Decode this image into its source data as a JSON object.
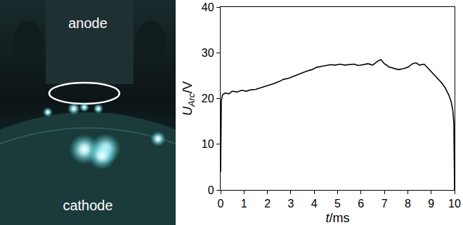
{
  "image": {
    "top_label": "anode",
    "bottom_label": "cathode"
  },
  "chart_data": {
    "type": "line",
    "xlabel": {
      "symbol": "t",
      "unit": "/ms"
    },
    "ylabel": {
      "symbol": "U",
      "subscript": "Arc",
      "unit": "/V"
    },
    "x": [
      0,
      0.03,
      0.08,
      0.2,
      0.35,
      0.5,
      0.7,
      0.9,
      1.1,
      1.3,
      1.5,
      1.7,
      1.9,
      2.1,
      2.3,
      2.5,
      2.7,
      2.9,
      3.1,
      3.3,
      3.5,
      3.7,
      3.9,
      4.1,
      4.3,
      4.5,
      4.7,
      4.9,
      5.1,
      5.3,
      5.5,
      5.7,
      5.9,
      6.1,
      6.3,
      6.5,
      6.7,
      6.85,
      7.0,
      7.2,
      7.4,
      7.6,
      7.8,
      8.0,
      8.2,
      8.35,
      8.5,
      8.7,
      8.85,
      9.0,
      9.15,
      9.3,
      9.45,
      9.6,
      9.75,
      9.85,
      9.93,
      9.97,
      10.0
    ],
    "values": [
      4,
      19.5,
      20.8,
      21.2,
      21.0,
      21.6,
      21.4,
      21.8,
      21.6,
      21.9,
      22.0,
      22.3,
      22.6,
      22.9,
      23.3,
      23.7,
      24.2,
      24.4,
      24.8,
      25.3,
      25.6,
      26.0,
      26.3,
      26.8,
      27.0,
      27.2,
      27.4,
      27.3,
      27.5,
      27.3,
      27.4,
      27.5,
      27.2,
      27.4,
      27.6,
      27.3,
      28.1,
      28.5,
      27.6,
      26.9,
      26.6,
      26.3,
      26.5,
      26.8,
      27.6,
      27.8,
      27.3,
      27.5,
      26.7,
      25.9,
      25.1,
      24.3,
      23.4,
      22.3,
      20.8,
      19.4,
      17.3,
      14.5,
      0
    ],
    "xlim": [
      0,
      10
    ],
    "ylim": [
      0,
      40
    ],
    "xticks": [
      0,
      1,
      2,
      3,
      4,
      5,
      6,
      7,
      8,
      9,
      10
    ],
    "yticks": [
      0,
      10,
      20,
      30,
      40
    ],
    "color": "#000000",
    "grid": false
  }
}
